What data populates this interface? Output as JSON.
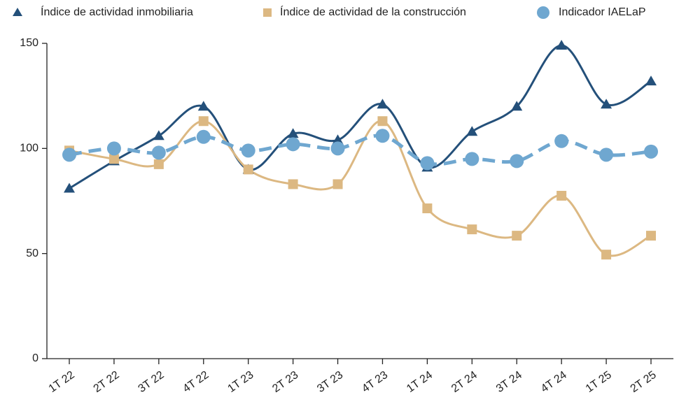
{
  "chart_data": {
    "type": "line",
    "categories": [
      "1T 22",
      "2T 22",
      "3T 22",
      "4T 22",
      "1T 23",
      "2T 23",
      "3T 23",
      "4T 23",
      "1T 24",
      "2T 24",
      "3T 24",
      "4T 24",
      "1T 25",
      "2T 25"
    ],
    "series": [
      {
        "name": "Índice de actividad inmobiliaria",
        "color": "#24507a",
        "marker": "triangle",
        "dashed": false,
        "values": [
          81,
          94,
          106,
          120,
          90,
          107,
          104,
          121,
          91,
          108,
          120,
          149,
          121,
          132
        ]
      },
      {
        "name": "Índice de actividad de la construcción",
        "color": "#dcb882",
        "marker": "square",
        "dashed": false,
        "values": [
          99,
          95,
          92.5,
          113,
          90,
          83,
          83,
          113,
          71.5,
          61.5,
          58.5,
          77.5,
          49.5,
          58.5
        ]
      },
      {
        "name": "Indicador IAELaP",
        "color": "#6fa7d0",
        "marker": "circle",
        "dashed": true,
        "values": [
          97,
          100,
          98,
          105.5,
          99,
          102,
          100,
          106,
          93,
          95,
          94,
          103.5,
          97,
          98.5
        ]
      }
    ],
    "ylim": [
      0,
      150
    ],
    "yticks": [
      0,
      50,
      100,
      150
    ],
    "grid": false
  }
}
